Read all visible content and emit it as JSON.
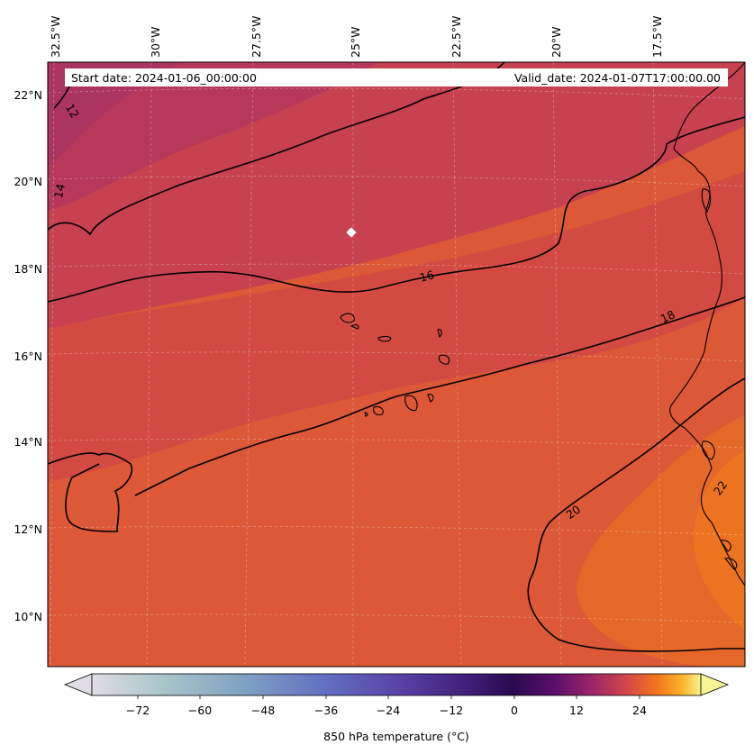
{
  "header": {
    "start_date": "Start date: 2024-01-06_00:00:00",
    "valid_date": "Valid_date: 2024-01-07T17:00:00.00"
  },
  "map": {
    "lon_labels": [
      "32.5°W",
      "30°W",
      "27.5°W",
      "25°W",
      "22.5°W",
      "20°W",
      "17.5°W"
    ],
    "lat_labels": [
      "22°N",
      "20°N",
      "18°N",
      "16°N",
      "14°N",
      "12°N",
      "10°N"
    ],
    "contour_labels": [
      "12",
      "14",
      "16",
      "18",
      "20",
      "22"
    ],
    "marker": "white-diamond"
  },
  "colorbar": {
    "ticks": [
      "−72",
      "−60",
      "−48",
      "−36",
      "−24",
      "−12",
      "0",
      "12",
      "24"
    ],
    "label": "850 hPa temperature (°C)",
    "extend": "both",
    "colormap": [
      "#e0dce4",
      "#9fbfc0",
      "#6a8ec8",
      "#5f4ab0",
      "#3b1a72",
      "#2c0a55",
      "#8a1f6a",
      "#c8404f",
      "#f07020",
      "#fbb22a",
      "#fafa9a"
    ]
  },
  "colors": {
    "field_warm": "#e05f31",
    "field_mid": "#d24a3f",
    "field_cool": "#b53858",
    "field_hot": "#ef7024"
  }
}
